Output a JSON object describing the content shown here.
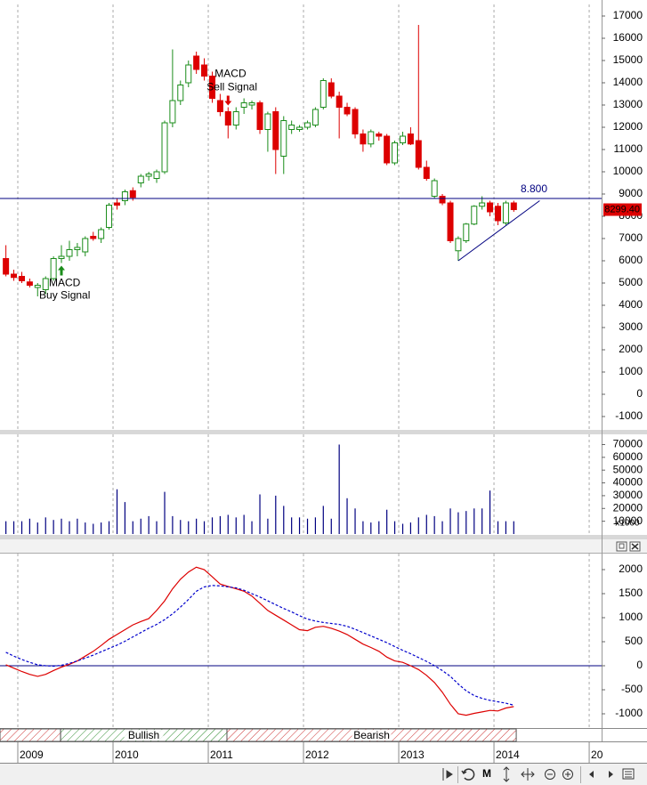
{
  "chart_data": [
    {
      "type": "candlestick",
      "x": [
        2008.875,
        2008.958,
        2009.042,
        2009.125,
        2009.208,
        2009.292,
        2009.375,
        2009.458,
        2009.542,
        2009.625,
        2009.708,
        2009.792,
        2009.875,
        2009.958,
        2010.042,
        2010.125,
        2010.208,
        2010.292,
        2010.375,
        2010.458,
        2010.542,
        2010.625,
        2010.708,
        2010.792,
        2010.875,
        2010.958,
        2011.042,
        2011.125,
        2011.208,
        2011.292,
        2011.375,
        2011.458,
        2011.542,
        2011.625,
        2011.708,
        2011.792,
        2011.875,
        2011.958,
        2012.042,
        2012.125,
        2012.208,
        2012.292,
        2012.375,
        2012.458,
        2012.542,
        2012.625,
        2012.708,
        2012.792,
        2012.875,
        2012.958,
        2013.042,
        2013.125,
        2013.208,
        2013.292,
        2013.375,
        2013.458,
        2013.542,
        2013.625,
        2013.708,
        2013.792,
        2013.875,
        2013.958,
        2014.042,
        2014.125,
        2014.208
      ],
      "open": [
        6100,
        5400,
        5300,
        5050,
        4800,
        4700,
        5200,
        6100,
        6200,
        6500,
        6400,
        7100,
        7000,
        7500,
        8600,
        8700,
        9150,
        9500,
        9800,
        9700,
        10000,
        12200,
        13200,
        14000,
        15200,
        14800,
        14300,
        13200,
        12700,
        12100,
        12900,
        13000,
        13100,
        11900,
        12700,
        10700,
        11900,
        11900,
        12000,
        12100,
        12900,
        14000,
        13400,
        12900,
        12800,
        11700,
        11250,
        11700,
        11600,
        10400,
        11300,
        11700,
        11400,
        10200,
        8900,
        8900,
        8600,
        6450,
        6900,
        7650,
        8450,
        8600,
        8450,
        7700,
        8600
      ],
      "high": [
        6700,
        5600,
        5500,
        5200,
        5000,
        5300,
        6200,
        6700,
        6900,
        6800,
        7100,
        7300,
        7500,
        8600,
        8800,
        9200,
        9300,
        9900,
        10000,
        10100,
        12300,
        15500,
        14100,
        15000,
        15400,
        15100,
        14500,
        13500,
        12900,
        12900,
        13300,
        13200,
        13200,
        12700,
        12900,
        12500,
        12300,
        12100,
        12300,
        12900,
        14200,
        14200,
        13600,
        13100,
        12900,
        11900,
        11900,
        11800,
        11700,
        11400,
        11800,
        12000,
        16600,
        10500,
        9700,
        9000,
        8700,
        7100,
        7700,
        8500,
        8900,
        8700,
        8600,
        8700,
        8700
      ],
      "low": [
        5300,
        5100,
        5000,
        4800,
        4400,
        4500,
        5100,
        5900,
        6000,
        6200,
        6200,
        6900,
        6800,
        7400,
        8300,
        8500,
        8700,
        9300,
        9600,
        9500,
        9900,
        12000,
        13000,
        13800,
        14400,
        14100,
        13100,
        12500,
        11500,
        11900,
        12600,
        12800,
        11700,
        10900,
        9900,
        9900,
        11700,
        11800,
        11900,
        12000,
        12800,
        13300,
        11500,
        12500,
        11500,
        10900,
        11100,
        11400,
        10300,
        10300,
        11200,
        11200,
        10100,
        9600,
        8800,
        8500,
        6800,
        6000,
        6800,
        7600,
        8300,
        8000,
        7600,
        7600,
        8200
      ],
      "close": [
        5400,
        5250,
        5100,
        4900,
        4900,
        5200,
        6100,
        6200,
        6500,
        6600,
        7000,
        7000,
        7400,
        8500,
        8500,
        9100,
        8850,
        9800,
        9900,
        10000,
        12200,
        13200,
        13900,
        14800,
        14600,
        14300,
        13300,
        12700,
        12100,
        12700,
        13100,
        13100,
        11900,
        12600,
        11000,
        12300,
        12100,
        12000,
        12200,
        12800,
        14100,
        13400,
        12900,
        12600,
        11700,
        11250,
        11800,
        11600,
        10400,
        11300,
        11600,
        11250,
        10200,
        9700,
        9600,
        8600,
        6900,
        7000,
        7650,
        8450,
        8600,
        8200,
        7800,
        8600,
        8299.4
      ],
      "up_color": "#1a8c1a",
      "down_color": "#dd0000",
      "xlim": [
        2008.813,
        2015.121
      ],
      "xticks": [
        2009,
        2010,
        2011,
        2012,
        2013,
        2014,
        {
          "value": 2015,
          "label": "20"
        }
      ],
      "ylim": [
        -1560,
        17520
      ],
      "yticks": [
        -1000,
        0,
        1000,
        2000,
        3000,
        4000,
        5000,
        6000,
        7000,
        8000,
        9000,
        10000,
        11000,
        12000,
        13000,
        14000,
        15000,
        16000,
        17000
      ],
      "grid": "x",
      "hlines": [
        {
          "value": 8800,
          "label": "8.800",
          "color": "#000080"
        }
      ],
      "trendline": {
        "x": [
          2013.625,
          2014.48
        ],
        "values": [
          6000,
          8700
        ],
        "color": "#000080"
      },
      "last_price": {
        "value": 8299.4,
        "label": "8299.40",
        "color": "#dd0000"
      },
      "signals": [
        {
          "x": 2009.458,
          "direction": "buy",
          "color": "#1a8c1a",
          "lines": [
            "MACD",
            "Buy Signal"
          ]
        },
        {
          "x": 2011.208,
          "direction": "sell",
          "color": "#dd0000",
          "lines": [
            "MACD",
            "Sell Signal"
          ]
        }
      ]
    },
    {
      "type": "bar",
      "x": [
        2008.875,
        2008.958,
        2009.042,
        2009.125,
        2009.208,
        2009.292,
        2009.375,
        2009.458,
        2009.542,
        2009.625,
        2009.708,
        2009.792,
        2009.875,
        2009.958,
        2010.042,
        2010.125,
        2010.208,
        2010.292,
        2010.375,
        2010.458,
        2010.542,
        2010.625,
        2010.708,
        2010.792,
        2010.875,
        2010.958,
        2011.042,
        2011.125,
        2011.208,
        2011.292,
        2011.375,
        2011.458,
        2011.542,
        2011.625,
        2011.708,
        2011.792,
        2011.875,
        2011.958,
        2012.042,
        2012.125,
        2012.208,
        2012.292,
        2012.375,
        2012.458,
        2012.542,
        2012.625,
        2012.708,
        2012.792,
        2012.875,
        2012.958,
        2013.042,
        2013.125,
        2013.208,
        2013.292,
        2013.375,
        2013.458,
        2013.542,
        2013.625,
        2013.708,
        2013.792,
        2013.875,
        2013.958,
        2014.042,
        2014.125,
        2014.208
      ],
      "values": [
        10000,
        10000,
        10000,
        12000,
        9000,
        13000,
        11000,
        12000,
        10000,
        12000,
        9000,
        8000,
        9000,
        10000,
        35000,
        25000,
        10000,
        12000,
        14000,
        10000,
        33000,
        14000,
        11000,
        10000,
        12000,
        10000,
        13000,
        14000,
        15000,
        13000,
        15000,
        10000,
        31000,
        12000,
        30000,
        22000,
        13000,
        13000,
        12000,
        13000,
        22000,
        12000,
        70000,
        28000,
        20000,
        10000,
        9000,
        10000,
        19000,
        10000,
        8000,
        9000,
        13000,
        15000,
        14000,
        10000,
        20000,
        17000,
        18000,
        20000,
        20000,
        34000,
        10000,
        10000,
        10000
      ],
      "color": "#000080",
      "xlim": [
        2008.813,
        2015.121
      ],
      "xticks": [
        2009,
        2010,
        2011,
        2012,
        2013,
        2014,
        {
          "value": 2015,
          "label": "20"
        }
      ],
      "ylim": [
        0,
        78000
      ],
      "yticks": [
        10000,
        20000,
        30000,
        40000,
        50000,
        60000,
        70000
      ],
      "grid": "x",
      "multiplier_label": "x1000"
    },
    {
      "type": "line",
      "x": [
        2008.875,
        2008.958,
        2009.042,
        2009.125,
        2009.208,
        2009.292,
        2009.375,
        2009.458,
        2009.542,
        2009.625,
        2009.708,
        2009.792,
        2009.875,
        2009.958,
        2010.042,
        2010.125,
        2010.208,
        2010.292,
        2010.375,
        2010.458,
        2010.542,
        2010.625,
        2010.708,
        2010.792,
        2010.875,
        2010.958,
        2011.042,
        2011.125,
        2011.208,
        2011.292,
        2011.375,
        2011.458,
        2011.542,
        2011.625,
        2011.708,
        2011.792,
        2011.875,
        2011.958,
        2012.042,
        2012.125,
        2012.208,
        2012.292,
        2012.375,
        2012.458,
        2012.542,
        2012.625,
        2012.708,
        2012.792,
        2012.875,
        2012.958,
        2013.042,
        2013.125,
        2013.208,
        2013.292,
        2013.375,
        2013.458,
        2013.542,
        2013.625,
        2013.708,
        2013.792,
        2013.875,
        2013.958,
        2014.042,
        2014.125,
        2014.208
      ],
      "series": [
        {
          "color": "#dd0000",
          "dash": false,
          "values": [
            20,
            -50,
            -120,
            -180,
            -220,
            -180,
            -100,
            -30,
            30,
            100,
            200,
            300,
            420,
            550,
            650,
            750,
            850,
            920,
            980,
            1150,
            1350,
            1600,
            1800,
            1950,
            2050,
            2000,
            1850,
            1700,
            1650,
            1600,
            1550,
            1450,
            1300,
            1150,
            1050,
            950,
            850,
            750,
            730,
            800,
            820,
            780,
            720,
            650,
            550,
            450,
            380,
            300,
            180,
            100,
            70,
            0,
            -80,
            -200,
            -350,
            -550,
            -800,
            -1000,
            -1030,
            -990,
            -960,
            -930,
            -940,
            -880,
            -850
          ]
        },
        {
          "color": "#0000cc",
          "dash": true,
          "values": [
            280,
            200,
            130,
            70,
            20,
            0,
            -10,
            10,
            50,
            100,
            160,
            220,
            290,
            360,
            430,
            510,
            600,
            690,
            780,
            860,
            960,
            1080,
            1220,
            1380,
            1550,
            1640,
            1670,
            1660,
            1640,
            1620,
            1570,
            1500,
            1430,
            1350,
            1270,
            1190,
            1120,
            1040,
            970,
            930,
            900,
            880,
            860,
            820,
            760,
            690,
            620,
            550,
            480,
            400,
            320,
            250,
            170,
            90,
            0,
            -100,
            -220,
            -380,
            -520,
            -620,
            -680,
            -720,
            -750,
            -780,
            -820
          ]
        }
      ],
      "xlim": [
        2008.813,
        2015.121
      ],
      "xticks": [
        2009,
        2010,
        2011,
        2012,
        2013,
        2014,
        {
          "value": 2015,
          "label": "20"
        }
      ],
      "ylim": [
        -1296,
        2333
      ],
      "yticks": [
        -1000,
        -500,
        0,
        500,
        1000,
        1500,
        2000
      ],
      "grid": "x",
      "zero_line": true,
      "show_x_labels": true,
      "regimes": [
        {
          "start": 2008.813,
          "end": 2009.449,
          "color": "#cc3333"
        },
        {
          "start": 2009.449,
          "end": 2011.196,
          "color": "#2e8b2e",
          "label": "Bullish"
        },
        {
          "start": 2011.196,
          "end": 2014.234,
          "color": "#cc3333",
          "label": "Bearish"
        }
      ]
    }
  ],
  "toolbar": {
    "mode_label": "M"
  }
}
